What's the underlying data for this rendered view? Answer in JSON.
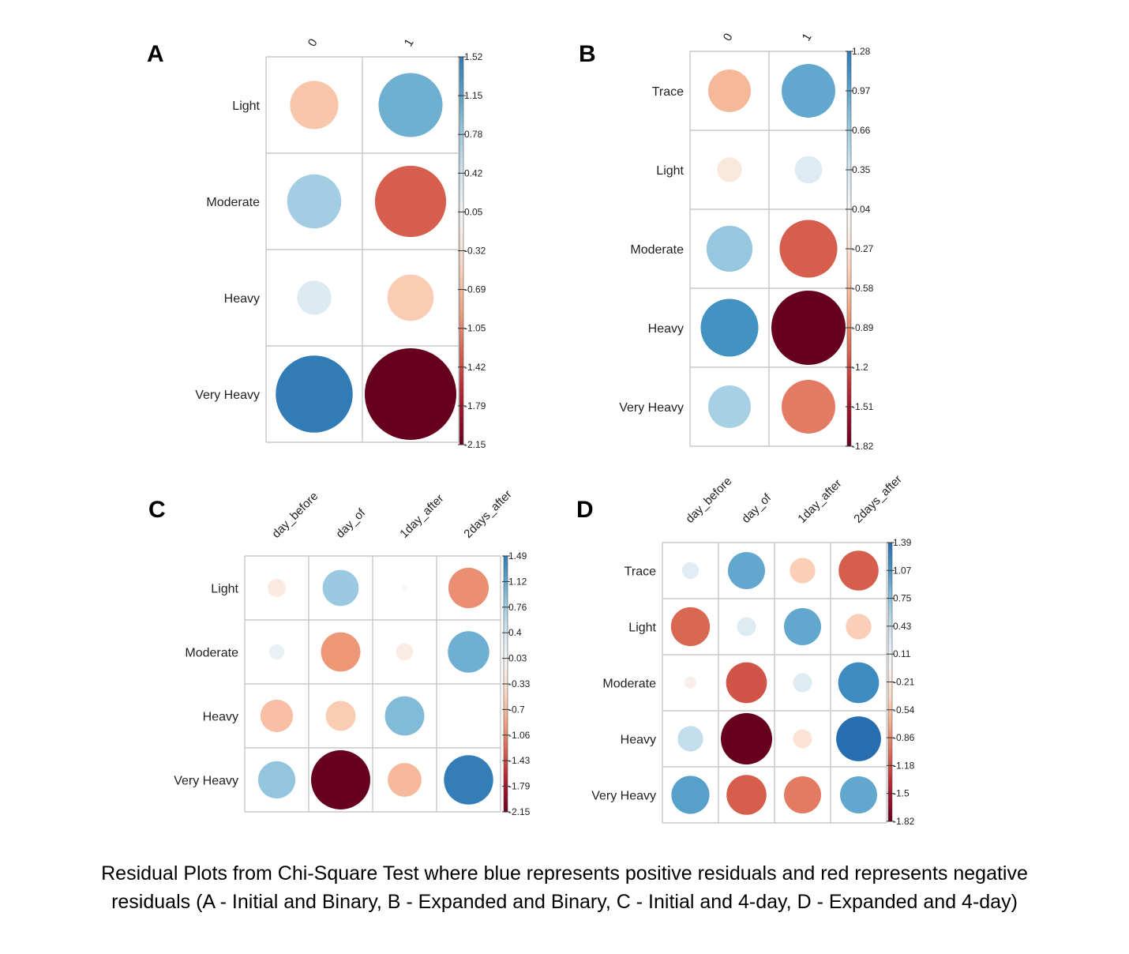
{
  "caption": {
    "line1": "Residual Plots from Chi-Square Test where blue represents positive residuals and red represents negative",
    "line2": "residuals (A - Initial and Binary, B - Expanded and Binary, C - Initial and 4-day, D - Expanded and 4-day)"
  },
  "colors": {
    "strong_red": "#67001F",
    "red": "#B2182B",
    "light_red": "#D6604D",
    "salmon": "#F4A582",
    "pale_red": "#FDDBC7",
    "white": "#F7F7F7",
    "pale_blue": "#D1E5F0",
    "light_blue": "#92C5DE",
    "blue": "#4393C3",
    "dark_blue": "#2166AC",
    "strong_blue": "#053061"
  },
  "chart_data": [
    {
      "type": "heatmap",
      "panel": "A",
      "columns": [
        "0",
        "1"
      ],
      "rows": [
        "Light",
        "Moderate",
        "Heavy",
        "Very Heavy"
      ],
      "values": [
        [
          -0.6,
          1.05
        ],
        [
          0.75,
          -1.3
        ],
        [
          0.3,
          -0.55
        ],
        [
          1.52,
          -2.15
        ]
      ],
      "scale_ticks": [
        "1.52",
        "1.15",
        "0.78",
        "0.42",
        "0.05",
        "-0.32",
        "-0.69",
        "-1.05",
        "-1.42",
        "-1.79",
        "-2.15"
      ],
      "scale_range": [
        -2.15,
        1.52
      ]
    },
    {
      "type": "heatmap",
      "panel": "B",
      "columns": [
        "0",
        "1"
      ],
      "rows": [
        "Trace",
        "Light",
        "Moderate",
        "Heavy",
        "Very Heavy"
      ],
      "values": [
        [
          -0.6,
          0.95
        ],
        [
          -0.2,
          0.25
        ],
        [
          0.7,
          -1.1
        ],
        [
          1.1,
          -1.82
        ],
        [
          0.6,
          -0.95
        ]
      ],
      "scale_ticks": [
        "1.28",
        "0.97",
        "0.66",
        "0.35",
        "0.04",
        "-0.27",
        "-0.58",
        "-0.89",
        "-1.2",
        "-1.51",
        "-1.82"
      ],
      "scale_range": [
        -1.82,
        1.28
      ]
    },
    {
      "type": "heatmap",
      "panel": "C",
      "columns": [
        "day_before",
        "day_of",
        "1day_after",
        "2days_after"
      ],
      "rows": [
        "Light",
        "Moderate",
        "Heavy",
        "Very Heavy"
      ],
      "values": [
        [
          -0.2,
          0.8,
          -0.02,
          -1.0
        ],
        [
          0.15,
          -0.95,
          -0.18,
          1.05
        ],
        [
          -0.65,
          -0.55,
          0.95,
          0.0
        ],
        [
          0.85,
          -2.15,
          -0.7,
          1.49
        ]
      ],
      "scale_ticks": [
        "1.49",
        "1.12",
        "0.76",
        "0.4",
        "0.03",
        "-0.33",
        "-0.7",
        "-1.06",
        "-1.43",
        "-1.79",
        "-2.15"
      ],
      "scale_range": [
        -2.15,
        1.49
      ]
    },
    {
      "type": "heatmap",
      "panel": "D",
      "columns": [
        "day_before",
        "day_of",
        "1day_after",
        "2days_after"
      ],
      "rows": [
        "Trace",
        "Light",
        "Moderate",
        "Heavy",
        "Very Heavy"
      ],
      "values": [
        [
          0.2,
          0.95,
          -0.45,
          -1.1
        ],
        [
          -1.05,
          0.25,
          0.95,
          -0.45
        ],
        [
          -0.1,
          -1.15,
          0.25,
          1.15
        ],
        [
          0.45,
          -1.82,
          -0.25,
          1.39
        ],
        [
          1.0,
          -1.1,
          -0.95,
          0.95
        ]
      ],
      "scale_ticks": [
        "1.39",
        "1.07",
        "0.75",
        "0.43",
        "0.11",
        "-0.21",
        "-0.54",
        "-0.86",
        "-1.18",
        "-1.5",
        "-1.82"
      ],
      "scale_range": [
        -1.82,
        1.39
      ]
    }
  ]
}
